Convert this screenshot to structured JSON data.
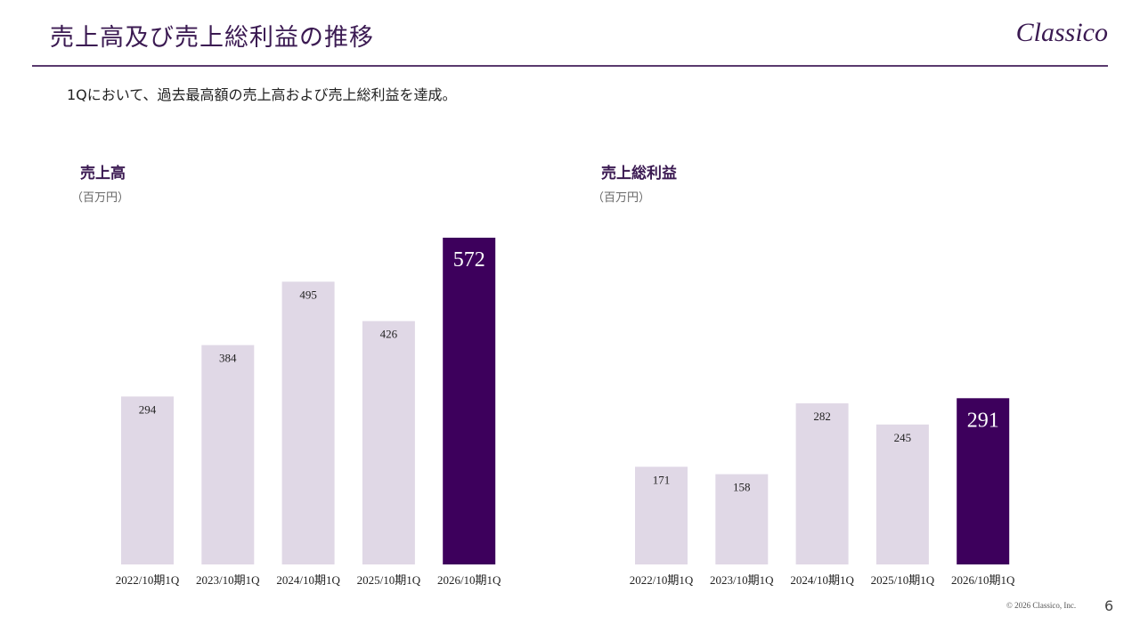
{
  "header": {
    "title": "売上高及び売上総利益の推移",
    "logo": "Classico"
  },
  "subtitle": "1Qにおいて、過去最高額の売上高および売上総利益を達成。",
  "colors": {
    "bar": "#e0d8e6",
    "highlight": "#3d005c",
    "accent": "#3b1a52"
  },
  "chart_data": [
    {
      "type": "bar",
      "title": "売上高",
      "unit": "（百万円）",
      "categories": [
        "2022/10期1Q",
        "2023/10期1Q",
        "2024/10期1Q",
        "2025/10期1Q",
        "2026/10期1Q"
      ],
      "values": [
        294,
        384,
        495,
        426,
        572
      ],
      "highlight_index": 4,
      "grid": false
    },
    {
      "type": "bar",
      "title": "売上総利益",
      "unit": "（百万円）",
      "categories": [
        "2022/10期1Q",
        "2023/10期1Q",
        "2024/10期1Q",
        "2025/10期1Q",
        "2026/10期1Q"
      ],
      "values": [
        171,
        158,
        282,
        245,
        291
      ],
      "highlight_index": 4,
      "grid": false
    }
  ],
  "footer": {
    "copyright": "© 2026 Classico, Inc.",
    "page": "6"
  }
}
